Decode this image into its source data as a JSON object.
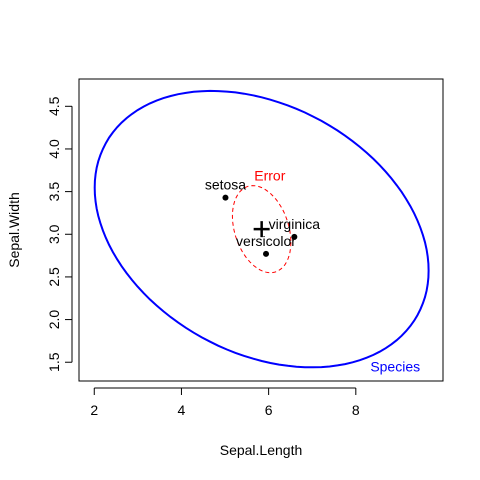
{
  "chart_data": {
    "type": "scatter",
    "xlabel": "Sepal.Length",
    "ylabel": "Sepal.Width",
    "xlim": [
      1.65,
      10.0
    ],
    "ylim": [
      1.28,
      4.82
    ],
    "x_ticks": [
      2,
      4,
      6,
      8
    ],
    "y_ticks": [
      1.5,
      2.0,
      2.5,
      3.0,
      3.5,
      4.0,
      4.5
    ],
    "x_tick_labels": [
      "2",
      "4",
      "6",
      "8"
    ],
    "y_tick_labels": [
      "1.5",
      "2.0",
      "2.5",
      "3.0",
      "3.5",
      "4.0",
      "4.5"
    ],
    "grid": false,
    "points": [
      {
        "label": "setosa",
        "x": 5.01,
        "y": 3.43
      },
      {
        "label": "versicolor",
        "x": 5.94,
        "y": 2.77
      },
      {
        "label": "virginica",
        "x": 6.59,
        "y": 2.97
      }
    ],
    "grand_mean": {
      "x": 5.84,
      "y": 3.06
    },
    "ellipses": [
      {
        "label": "Error",
        "color": "#ff0000",
        "line_style": "dashed",
        "center": [
          5.84,
          3.06
        ],
        "x_extent": [
          5.17,
          6.51
        ],
        "y_extent": [
          2.55,
          3.57
        ]
      },
      {
        "label": "Species",
        "color": "#0000ff",
        "line_style": "solid",
        "center": [
          5.84,
          3.06
        ],
        "x_extent": [
          2.01,
          9.67
        ],
        "y_extent": [
          1.44,
          4.68
        ]
      }
    ]
  }
}
